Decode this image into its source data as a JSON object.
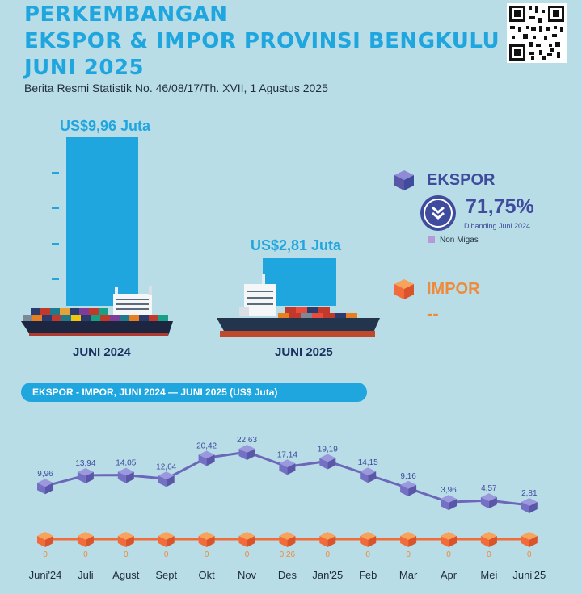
{
  "header": {
    "title_lines": [
      "PERKEMBANGAN",
      "EKSPOR & IMPOR PROVINSI BENGKULU",
      "JUNI 2025"
    ],
    "subtitle": "Berita Resmi Statistik No. 46/08/17/Th. XVII, 1 Agustus 2025"
  },
  "comparison": {
    "bar_color": "#1fa6df",
    "left": {
      "value": 9.96,
      "label": "US$9,96 Juta",
      "period": "JUNI 2024"
    },
    "right": {
      "value": 2.81,
      "label": "US$2,81 Juta",
      "period": "JUNI 2025"
    }
  },
  "ekspor": {
    "title": "EKSPOR",
    "change": "71,75%",
    "direction_icon": "double-chevron-down-icon",
    "caption": "Dibanding Juni 2024",
    "legend": "Non Migas",
    "color": "#3f4b9c"
  },
  "impor": {
    "title": "IMPOR",
    "value": "--",
    "color": "#f08a3b"
  },
  "chart_data": {
    "type": "line",
    "title": "EKSPOR - IMPOR, JUNI 2024 — JUNI 2025 (US$ Juta)",
    "categories": [
      "Juni'24",
      "Juli",
      "Agust",
      "Sept",
      "Okt",
      "Nov",
      "Des",
      "Jan'25",
      "Feb",
      "Mar",
      "Apr",
      "Mei",
      "Juni'25"
    ],
    "series": [
      {
        "key": "ekspor",
        "color": "#6c67b9",
        "values": [
          9.96,
          13.94,
          14.05,
          12.64,
          20.42,
          22.63,
          17.14,
          19.19,
          14.15,
          9.16,
          3.96,
          4.57,
          2.81
        ],
        "labels": [
          "9,96",
          "13,94",
          "14,05",
          "12,64",
          "20,42",
          "22,63",
          "17,14",
          "19,19",
          "14,15",
          "9,16",
          "3,96",
          "4,57",
          "2,81"
        ]
      },
      {
        "key": "impor",
        "color": "#f26b3a",
        "values": [
          0,
          0,
          0,
          0,
          0,
          0,
          0.26,
          0,
          0,
          0,
          0,
          0,
          0
        ],
        "labels": [
          "0",
          "0",
          "0",
          "0",
          "0",
          "0",
          "0,26",
          "0",
          "0",
          "0",
          "0",
          "0",
          "0"
        ]
      }
    ],
    "grid": false,
    "legend": "none"
  }
}
